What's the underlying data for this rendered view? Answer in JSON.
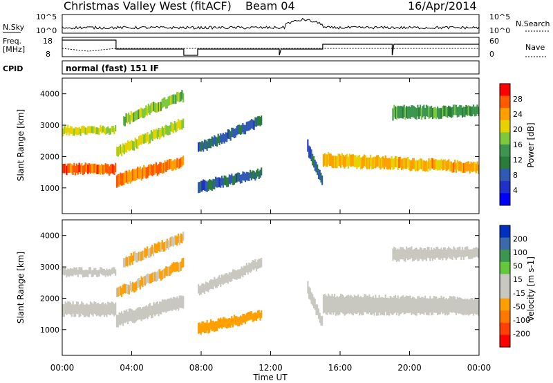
{
  "header": {
    "title": "Christmas Valley West (fitACF)",
    "beam": "Beam 04",
    "date": "16/Apr/2014"
  },
  "params": {
    "nsky_label": "N.Sky",
    "nsky_ticks": [
      "10^5",
      "10^0"
    ],
    "nsearch_label": "N.Search",
    "nsearch_ticks": [
      "10^5",
      "10^0"
    ],
    "freq_label_line1": "Freq.",
    "freq_label_line2": "[MHz]",
    "freq_ticks": [
      "18",
      "8"
    ],
    "nave_label": "Nave",
    "nave_ticks": [
      "60",
      "0"
    ],
    "cpid_label": "CPID",
    "cpid_text": "normal (fast) 151 IF"
  },
  "chart_data": [
    {
      "type": "heatmap",
      "name": "power",
      "ylabel": "Slant Range [km]",
      "y_ticks": [
        "4000",
        "3000",
        "2000",
        "1000"
      ],
      "ylim": [
        180,
        4500
      ],
      "xlabel": "Time UT",
      "x_ticks": [
        "00:00",
        "04:00",
        "08:00",
        "12:00",
        "16:00",
        "20:00",
        "00:00"
      ],
      "xlim_hours": [
        0,
        24
      ],
      "colorbar_label": "Power [dB]",
      "colorbar_ticks": [
        "28",
        "24",
        "20",
        "16",
        "12",
        "8",
        "4"
      ],
      "colorbar_colors": [
        "#ff0000",
        "#ff5a00",
        "#ffa000",
        "#e6d200",
        "#7ec83c",
        "#3c9650",
        "#2a7c3a",
        "#305ab4",
        "#2030c8",
        "#0000ff"
      ],
      "bands": [
        {
          "t0": 0.0,
          "t1": 3.1,
          "r0": 1450,
          "r1": 1750,
          "r2": 1450,
          "r3": 1750,
          "level": 28
        },
        {
          "t0": 0.0,
          "t1": 3.1,
          "r0": 2700,
          "r1": 2950,
          "r2": 2750,
          "r3": 2950,
          "level": 20
        },
        {
          "t0": 3.1,
          "t1": 7.0,
          "r0": 1050,
          "r1": 1450,
          "r2": 1700,
          "r3": 2000,
          "level": 26
        },
        {
          "t0": 3.1,
          "t1": 7.0,
          "r0": 2000,
          "r1": 2300,
          "r2": 2950,
          "r3": 3250,
          "level": 20
        },
        {
          "t0": 3.5,
          "t1": 7.0,
          "r0": 3000,
          "r1": 3300,
          "r2": 3800,
          "r3": 4100,
          "level": 18
        },
        {
          "t0": 7.8,
          "t1": 11.5,
          "r0": 850,
          "r1": 1200,
          "r2": 1350,
          "r3": 1600,
          "level": 8
        },
        {
          "t0": 7.8,
          "t1": 11.5,
          "r0": 2100,
          "r1": 2400,
          "r2": 3000,
          "r3": 3300,
          "level": 8
        },
        {
          "t0": 14.1,
          "t1": 15.0,
          "r0": 2100,
          "r1": 2500,
          "r2": 1000,
          "r3": 1300,
          "level": 8
        },
        {
          "t0": 15.0,
          "t1": 24.0,
          "r0": 1700,
          "r1": 2100,
          "r2": 1500,
          "r3": 1800,
          "level": 24
        },
        {
          "t0": 19.0,
          "t1": 24.0,
          "r0": 3200,
          "r1": 3600,
          "r2": 3300,
          "r3": 3600,
          "level": 14
        }
      ]
    },
    {
      "type": "heatmap",
      "name": "velocity",
      "ylabel": "Slant Range [km]",
      "y_ticks": [
        "4000",
        "3000",
        "2000",
        "1000"
      ],
      "ylim": [
        180,
        4500
      ],
      "xlabel": "Time UT",
      "x_ticks": [
        "00:00",
        "04:00",
        "08:00",
        "12:00",
        "16:00",
        "20:00",
        "00:00"
      ],
      "xlim_hours": [
        0,
        24
      ],
      "colorbar_label": "Velocity [m s-1]",
      "colorbar_ticks": [
        "200",
        "100",
        "50",
        "15",
        "-15",
        "-50",
        "-100",
        "-200"
      ],
      "colorbar_colors": [
        "#0030c0",
        "#3c6aa8",
        "#3c9650",
        "#64c83c",
        "#c8c8c0",
        "#c8c8c0",
        "#ffa000",
        "#ff7800",
        "#ff4000",
        "#ff0000"
      ],
      "bands": [
        {
          "t0": 0.0,
          "t1": 3.1,
          "r0": 1450,
          "r1": 1850,
          "r2": 1450,
          "r3": 1850,
          "level": 0
        },
        {
          "t0": 0.0,
          "t1": 3.1,
          "r0": 2700,
          "r1": 2950,
          "r2": 2750,
          "r3": 2950,
          "level": 0
        },
        {
          "t0": 3.1,
          "t1": 7.0,
          "r0": 1100,
          "r1": 1500,
          "r2": 1700,
          "r3": 2100,
          "level": 0
        },
        {
          "t0": 3.1,
          "t1": 7.0,
          "r0": 2000,
          "r1": 2300,
          "r2": 2950,
          "r3": 3250,
          "level": -60
        },
        {
          "t0": 3.5,
          "t1": 7.0,
          "r0": 3000,
          "r1": 3300,
          "r2": 3800,
          "r3": 4100,
          "level": -60
        },
        {
          "t0": 7.8,
          "t1": 11.5,
          "r0": 850,
          "r1": 1200,
          "r2": 1350,
          "r3": 1600,
          "level": -80
        },
        {
          "t0": 7.8,
          "t1": 11.5,
          "r0": 2100,
          "r1": 2400,
          "r2": 3000,
          "r3": 3300,
          "level": -40
        },
        {
          "t0": 14.1,
          "t1": 15.0,
          "r0": 2100,
          "r1": 2500,
          "r2": 1000,
          "r3": 1300,
          "level": 40
        },
        {
          "t0": 15.0,
          "t1": 24.0,
          "r0": 1500,
          "r1": 2100,
          "r2": 1500,
          "r3": 2000,
          "level": 0
        },
        {
          "t0": 19.0,
          "t1": 24.0,
          "r0": 3200,
          "r1": 3600,
          "r2": 3300,
          "r3": 3600,
          "level": 0
        }
      ]
    }
  ]
}
